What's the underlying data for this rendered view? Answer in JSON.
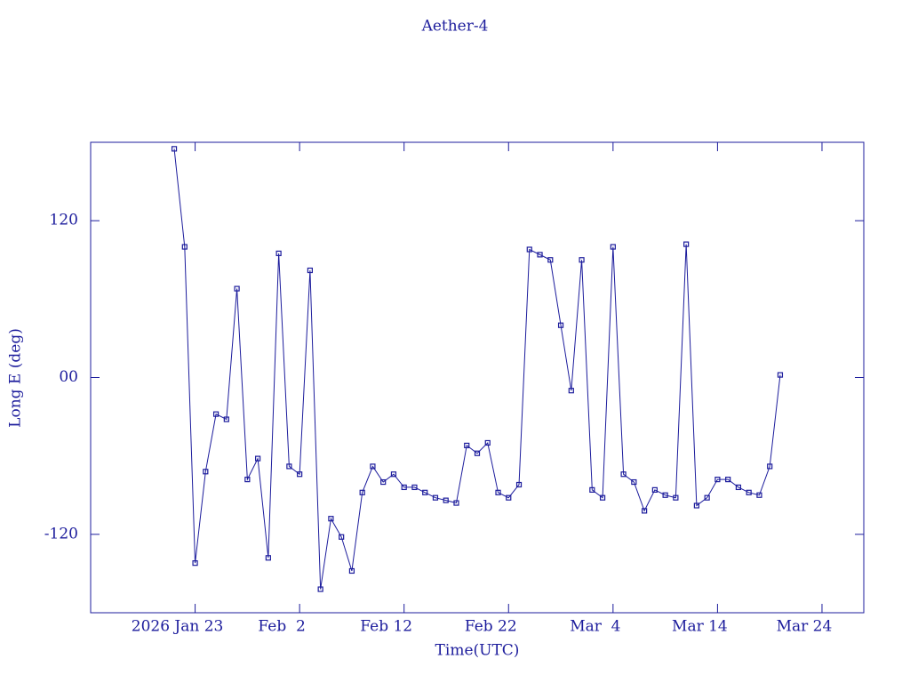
{
  "chart_data": {
    "type": "line",
    "title": "Aether-4",
    "xlabel": "Time(UTC)",
    "ylabel": "Long E (deg)",
    "x": [
      "2026-01-21",
      "2026-01-22",
      "2026-01-23",
      "2026-01-24",
      "2026-01-25",
      "2026-01-26",
      "2026-01-27",
      "2026-01-28",
      "2026-01-29",
      "2026-01-30",
      "2026-01-31",
      "2026-02-01",
      "2026-02-02",
      "2026-02-03",
      "2026-02-04",
      "2026-02-05",
      "2026-02-06",
      "2026-02-07",
      "2026-02-08",
      "2026-02-09",
      "2026-02-10",
      "2026-02-11",
      "2026-02-12",
      "2026-02-13",
      "2026-02-14",
      "2026-02-15",
      "2026-02-16",
      "2026-02-17",
      "2026-02-18",
      "2026-02-19",
      "2026-02-20",
      "2026-02-21",
      "2026-02-22",
      "2026-02-23",
      "2026-02-24",
      "2026-02-25",
      "2026-02-26",
      "2026-02-27",
      "2026-02-28",
      "2026-03-01",
      "2026-03-02",
      "2026-03-03",
      "2026-03-04",
      "2026-03-05",
      "2026-03-06",
      "2026-03-07",
      "2026-03-08",
      "2026-03-09",
      "2026-03-10",
      "2026-03-11",
      "2026-03-12",
      "2026-03-13",
      "2026-03-14",
      "2026-03-15",
      "2026-03-16",
      "2026-03-17",
      "2026-03-18",
      "2026-03-19",
      "2026-03-20"
    ],
    "series": [
      {
        "name": "Long E",
        "color": "#1c1c9c",
        "values": [
          175,
          100,
          -142,
          -72,
          -28,
          -32,
          68,
          -78,
          -62,
          -138,
          95,
          -68,
          -74,
          82,
          -162,
          -108,
          -122,
          -148,
          -88,
          -68,
          -80,
          -74,
          -84,
          -84,
          -88,
          -92,
          -94,
          -96,
          -52,
          -58,
          -50,
          -88,
          -92,
          -82,
          98,
          94,
          90,
          40,
          -10,
          90,
          -86,
          -92,
          100,
          -74,
          -80,
          -102,
          -86,
          -90,
          -92,
          102,
          -98,
          -92,
          -78,
          -78,
          -84,
          -88,
          -90,
          -68,
          2
        ]
      }
    ],
    "xlim": [
      "2026-01-13",
      "2026-03-28"
    ],
    "xticks": [
      {
        "value": "2026-01-23",
        "label": "2026 Jan 23"
      },
      {
        "value": "2026-02-02",
        "label": "Feb  2"
      },
      {
        "value": "2026-02-12",
        "label": "Feb 12"
      },
      {
        "value": "2026-02-22",
        "label": "Feb 22"
      },
      {
        "value": "2026-03-04",
        "label": "Mar  4"
      },
      {
        "value": "2026-03-14",
        "label": "Mar 14"
      },
      {
        "value": "2026-03-24",
        "label": "Mar 24"
      }
    ],
    "ylim": [
      -180,
      180
    ],
    "yticks": [
      -120,
      {
        "value": 0,
        "label": "00"
      },
      120
    ],
    "grid": false
  }
}
